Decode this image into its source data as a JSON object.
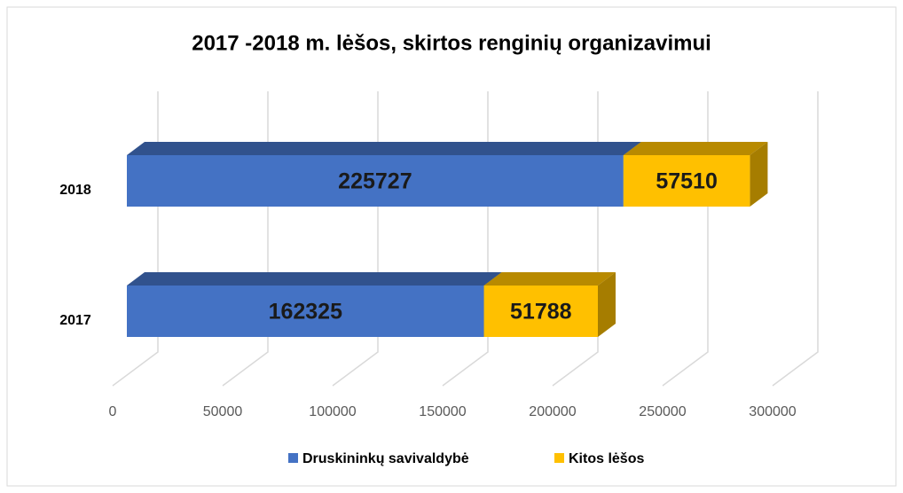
{
  "chart_data": {
    "type": "bar3d_stacked_horizontal",
    "title": "2017 -2018 m. lėšos, skirtos renginių organizavimui",
    "categories": [
      "2018",
      "2017"
    ],
    "series": [
      {
        "name": "Druskininkų savivaldybė",
        "color": "#4472c4",
        "values": [
          225727,
          162325
        ]
      },
      {
        "name": "Kitos lėšos",
        "color": "#ffc000",
        "values": [
          57510,
          51788
        ]
      }
    ],
    "xlim": [
      0,
      300000
    ],
    "xticks": [
      0,
      50000,
      100000,
      150000,
      200000,
      250000,
      300000
    ],
    "grid": true,
    "legend": "bottom"
  }
}
